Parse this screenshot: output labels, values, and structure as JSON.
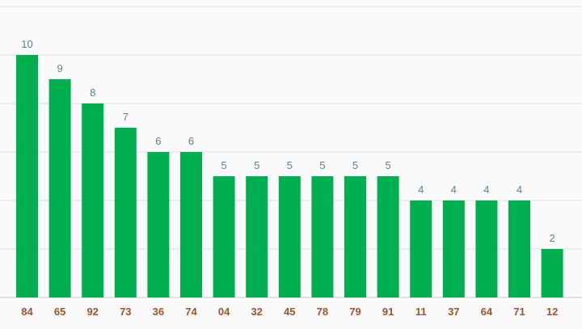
{
  "chart_data": {
    "type": "bar",
    "categories": [
      "84",
      "65",
      "92",
      "73",
      "36",
      "74",
      "04",
      "32",
      "45",
      "78",
      "79",
      "91",
      "11",
      "37",
      "64",
      "71",
      "12"
    ],
    "values": [
      10,
      9,
      8,
      7,
      6,
      6,
      5,
      5,
      5,
      5,
      5,
      5,
      4,
      4,
      4,
      4,
      2
    ],
    "title": "",
    "xlabel": "",
    "ylabel": "",
    "ylim": [
      0,
      12
    ],
    "grid": true,
    "legend": "none",
    "data_labels": true,
    "colors": {
      "bar": "#00b050",
      "value_label": "#5b7f95",
      "tick_label": "#a0522d",
      "grid": "#dcdcdc",
      "background": "#fafafa"
    }
  }
}
